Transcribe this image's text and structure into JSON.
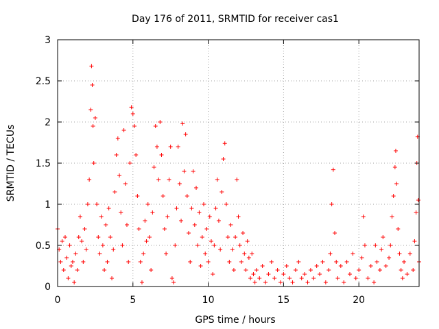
{
  "chart_data": {
    "type": "scatter",
    "title": "Day 176 of 2011, SRMTID for receiver cas1",
    "xlabel": "GPS time / hours",
    "ylabel": "SRMTID / TECUs",
    "xlim": [
      0,
      24
    ],
    "ylim": [
      0,
      3
    ],
    "xticks": [
      0,
      5,
      10,
      15,
      20
    ],
    "yticks": [
      0,
      0.5,
      1,
      1.5,
      2,
      2.5,
      3
    ],
    "xtick_labels": [
      "0",
      "5",
      "10",
      "15",
      "20"
    ],
    "ytick_labels": [
      "0",
      "0.5",
      "1",
      "1.5",
      "2",
      "2.5",
      "3"
    ],
    "grid": true,
    "marker": "+",
    "color": "#ff0000",
    "series": [
      {
        "name": "SRMTID",
        "points": [
          [
            0.0,
            0.7
          ],
          [
            0.1,
            0.45
          ],
          [
            0.2,
            0.3
          ],
          [
            0.3,
            0.55
          ],
          [
            0.4,
            0.2
          ],
          [
            0.5,
            0.6
          ],
          [
            0.6,
            0.35
          ],
          [
            0.7,
            0.1
          ],
          [
            0.8,
            0.5
          ],
          [
            0.9,
            0.25
          ],
          [
            1.0,
            0.3
          ],
          [
            1.1,
            0.05
          ],
          [
            1.2,
            0.4
          ],
          [
            1.3,
            0.2
          ],
          [
            1.4,
            0.6
          ],
          [
            1.5,
            0.85
          ],
          [
            1.6,
            0.55
          ],
          [
            1.7,
            0.3
          ],
          [
            1.8,
            0.7
          ],
          [
            1.9,
            0.45
          ],
          [
            2.0,
            1.0
          ],
          [
            2.1,
            1.3
          ],
          [
            2.2,
            2.15
          ],
          [
            2.25,
            2.68
          ],
          [
            2.3,
            2.45
          ],
          [
            2.35,
            1.95
          ],
          [
            2.4,
            1.5
          ],
          [
            2.5,
            2.05
          ],
          [
            2.6,
            1.0
          ],
          [
            2.7,
            0.6
          ],
          [
            2.8,
            0.4
          ],
          [
            2.9,
            0.85
          ],
          [
            3.0,
            0.5
          ],
          [
            3.1,
            0.2
          ],
          [
            3.2,
            0.75
          ],
          [
            3.3,
            0.3
          ],
          [
            3.4,
            0.95
          ],
          [
            3.5,
            0.6
          ],
          [
            3.6,
            0.1
          ],
          [
            3.7,
            0.45
          ],
          [
            3.8,
            1.15
          ],
          [
            3.9,
            1.6
          ],
          [
            4.0,
            1.8
          ],
          [
            4.1,
            1.35
          ],
          [
            4.2,
            0.9
          ],
          [
            4.3,
            0.5
          ],
          [
            4.4,
            1.9
          ],
          [
            4.5,
            1.25
          ],
          [
            4.6,
            0.75
          ],
          [
            4.7,
            0.3
          ],
          [
            4.8,
            1.5
          ],
          [
            4.9,
            2.18
          ],
          [
            5.0,
            2.1
          ],
          [
            5.1,
            1.95
          ],
          [
            5.2,
            1.6
          ],
          [
            5.3,
            1.1
          ],
          [
            5.4,
            0.7
          ],
          [
            5.5,
            0.3
          ],
          [
            5.6,
            0.05
          ],
          [
            5.7,
            0.4
          ],
          [
            5.8,
            0.8
          ],
          [
            5.9,
            0.55
          ],
          [
            6.0,
            1.0
          ],
          [
            6.1,
            0.6
          ],
          [
            6.2,
            0.2
          ],
          [
            6.3,
            0.9
          ],
          [
            6.4,
            1.45
          ],
          [
            6.5,
            1.95
          ],
          [
            6.6,
            1.7
          ],
          [
            6.7,
            1.3
          ],
          [
            6.8,
            2.0
          ],
          [
            6.9,
            1.6
          ],
          [
            7.0,
            1.1
          ],
          [
            7.1,
            0.7
          ],
          [
            7.2,
            0.4
          ],
          [
            7.3,
            0.85
          ],
          [
            7.4,
            1.3
          ],
          [
            7.5,
            1.7
          ],
          [
            7.6,
            0.1
          ],
          [
            7.7,
            0.05
          ],
          [
            7.8,
            0.5
          ],
          [
            7.9,
            0.95
          ],
          [
            8.0,
            1.7
          ],
          [
            8.1,
            1.25
          ],
          [
            8.2,
            0.8
          ],
          [
            8.3,
            1.98
          ],
          [
            8.4,
            1.4
          ],
          [
            8.5,
            1.85
          ],
          [
            8.6,
            1.1
          ],
          [
            8.7,
            0.65
          ],
          [
            8.8,
            0.3
          ],
          [
            8.9,
            0.95
          ],
          [
            9.0,
            1.4
          ],
          [
            9.1,
            0.75
          ],
          [
            9.2,
            1.2
          ],
          [
            9.3,
            0.5
          ],
          [
            9.4,
            0.9
          ],
          [
            9.5,
            0.25
          ],
          [
            9.6,
            0.6
          ],
          [
            9.7,
            1.0
          ],
          [
            9.8,
            0.4
          ],
          [
            9.9,
            0.7
          ],
          [
            10.0,
            0.3
          ],
          [
            10.1,
            0.85
          ],
          [
            10.2,
            0.55
          ],
          [
            10.3,
            0.15
          ],
          [
            10.4,
            0.5
          ],
          [
            10.5,
            0.95
          ],
          [
            10.6,
            1.3
          ],
          [
            10.7,
            0.8
          ],
          [
            10.8,
            0.45
          ],
          [
            10.9,
            1.15
          ],
          [
            11.0,
            1.55
          ],
          [
            11.1,
            1.74
          ],
          [
            11.2,
            1.0
          ],
          [
            11.3,
            0.6
          ],
          [
            11.4,
            0.3
          ],
          [
            11.5,
            0.75
          ],
          [
            11.6,
            0.45
          ],
          [
            11.7,
            0.2
          ],
          [
            11.8,
            0.6
          ],
          [
            11.9,
            1.3
          ],
          [
            12.0,
            0.85
          ],
          [
            12.1,
            0.5
          ],
          [
            12.2,
            0.3
          ],
          [
            12.3,
            0.65
          ],
          [
            12.4,
            0.4
          ],
          [
            12.5,
            0.2
          ],
          [
            12.6,
            0.55
          ],
          [
            12.7,
            0.35
          ],
          [
            12.8,
            0.1
          ],
          [
            12.9,
            0.4
          ],
          [
            13.0,
            0.15
          ],
          [
            13.1,
            0.05
          ],
          [
            13.2,
            0.2
          ],
          [
            13.4,
            0.1
          ],
          [
            13.6,
            0.25
          ],
          [
            13.8,
            0.05
          ],
          [
            14.0,
            0.15
          ],
          [
            14.2,
            0.3
          ],
          [
            14.4,
            0.1
          ],
          [
            14.6,
            0.2
          ],
          [
            14.8,
            0.05
          ],
          [
            15.0,
            0.15
          ],
          [
            15.2,
            0.25
          ],
          [
            15.4,
            0.1
          ],
          [
            15.6,
            0.05
          ],
          [
            15.8,
            0.2
          ],
          [
            16.0,
            0.3
          ],
          [
            16.2,
            0.1
          ],
          [
            16.4,
            0.15
          ],
          [
            16.6,
            0.05
          ],
          [
            16.8,
            0.2
          ],
          [
            17.0,
            0.1
          ],
          [
            17.2,
            0.25
          ],
          [
            17.4,
            0.15
          ],
          [
            17.6,
            0.3
          ],
          [
            17.8,
            0.05
          ],
          [
            18.0,
            0.2
          ],
          [
            18.1,
            0.4
          ],
          [
            18.2,
            1.0
          ],
          [
            18.3,
            1.42
          ],
          [
            18.4,
            0.65
          ],
          [
            18.5,
            0.3
          ],
          [
            18.6,
            0.1
          ],
          [
            18.8,
            0.25
          ],
          [
            19.0,
            0.05
          ],
          [
            19.2,
            0.3
          ],
          [
            19.4,
            0.15
          ],
          [
            19.6,
            0.4
          ],
          [
            19.8,
            0.1
          ],
          [
            20.0,
            0.2
          ],
          [
            20.2,
            0.35
          ],
          [
            20.3,
            0.85
          ],
          [
            20.4,
            0.5
          ],
          [
            20.6,
            0.1
          ],
          [
            20.8,
            0.25
          ],
          [
            21.0,
            0.05
          ],
          [
            21.1,
            0.5
          ],
          [
            21.2,
            0.3
          ],
          [
            21.4,
            0.2
          ],
          [
            21.5,
            0.45
          ],
          [
            21.6,
            0.6
          ],
          [
            21.8,
            0.25
          ],
          [
            22.0,
            0.35
          ],
          [
            22.1,
            0.5
          ],
          [
            22.2,
            0.85
          ],
          [
            22.3,
            1.1
          ],
          [
            22.4,
            1.45
          ],
          [
            22.45,
            1.65
          ],
          [
            22.5,
            1.25
          ],
          [
            22.6,
            0.7
          ],
          [
            22.7,
            0.4
          ],
          [
            22.8,
            0.2
          ],
          [
            22.9,
            0.1
          ],
          [
            23.0,
            0.3
          ],
          [
            23.2,
            0.15
          ],
          [
            23.4,
            0.4
          ],
          [
            23.6,
            0.2
          ],
          [
            23.7,
            0.55
          ],
          [
            23.8,
            0.9
          ],
          [
            23.85,
            1.5
          ],
          [
            23.9,
            1.82
          ],
          [
            23.95,
            1.05
          ],
          [
            24.0,
            0.3
          ]
        ]
      }
    ]
  }
}
